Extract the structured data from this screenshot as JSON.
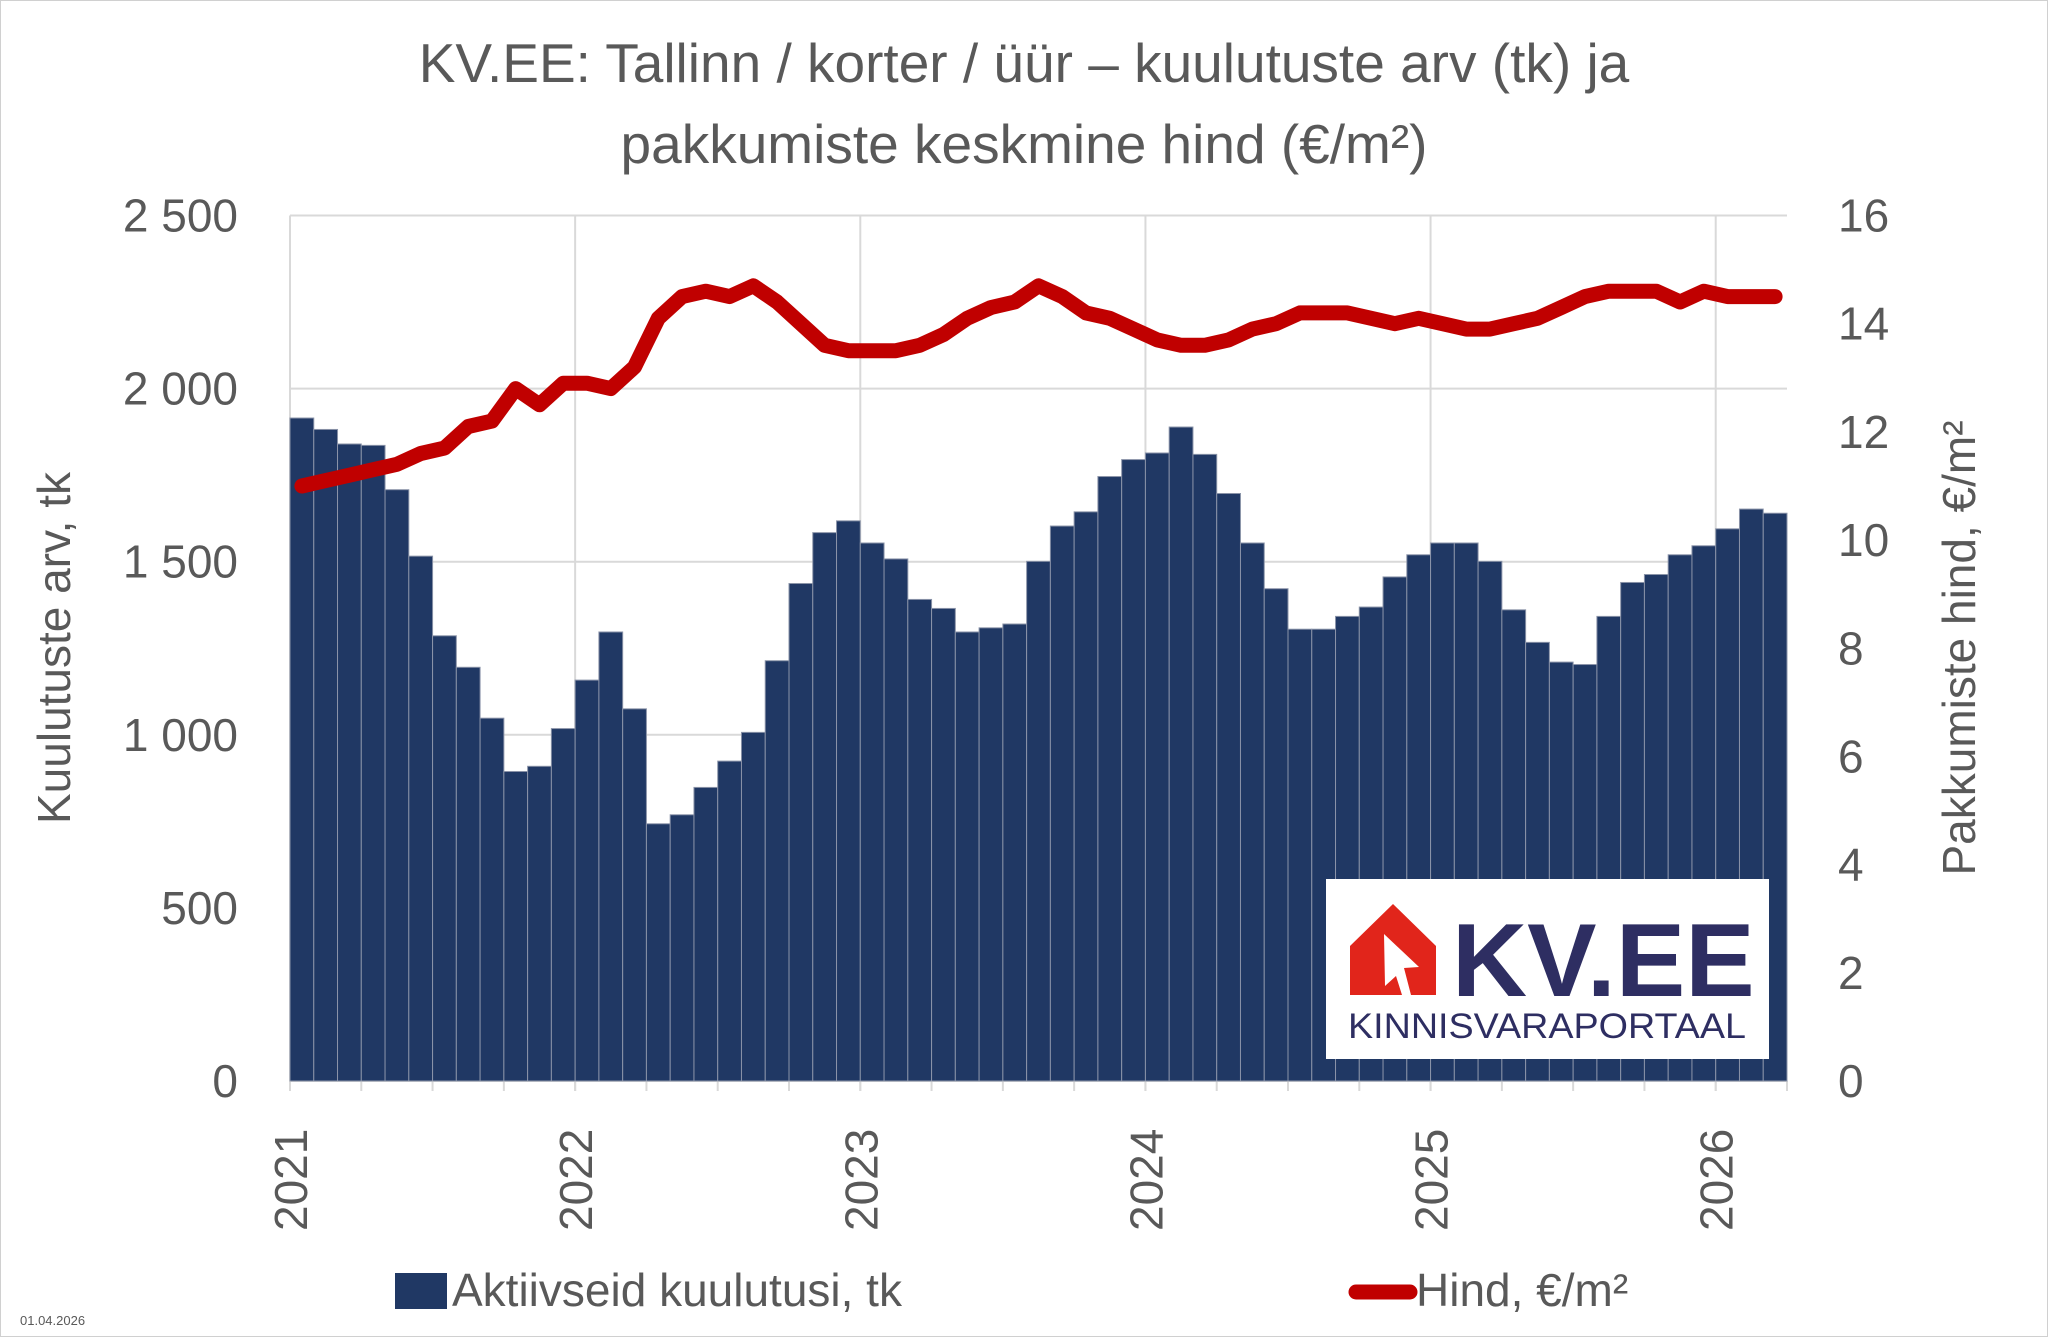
{
  "chart_data": {
    "type": "bar+line",
    "title_lines": [
      "KV.EE: Tallinn / korter / üür – kuulutuste arv (tk) ja",
      "pakkumiste keskmine hind (€/m²)"
    ],
    "ylabel_left": "Kuulutuste arv, tk",
    "ylabel_right": "Pakkumiste hind, €/m²",
    "ylim_left": [
      0,
      2500
    ],
    "ylim_right": [
      0,
      16
    ],
    "left_ticks": [
      "0",
      "500",
      "1 000",
      "1 500",
      "2 000",
      "2 500"
    ],
    "left_tick_values": [
      0,
      500,
      1000,
      1500,
      2000,
      2500
    ],
    "right_ticks": [
      "0",
      "2",
      "4",
      "6",
      "8",
      "10",
      "12",
      "14",
      "16"
    ],
    "right_tick_values": [
      0,
      2,
      4,
      6,
      8,
      10,
      12,
      14,
      16
    ],
    "x_tick_labels": [
      "2021",
      "2022",
      "2023",
      "2024",
      "2025",
      "2026"
    ],
    "x_start": "2021-01",
    "x_end": "2026-03",
    "grid": true,
    "legend_position": "bottom",
    "colors": {
      "bars": "#203864",
      "line": "#c00000",
      "grid": "#d9d9d9",
      "text": "#595959"
    },
    "series": [
      {
        "name": "Aktiivseid kuulutusi, tk",
        "type": "bar",
        "axis": "left",
        "values": [
          1915,
          1882,
          1840,
          1836,
          1708,
          1516,
          1286,
          1195,
          1048,
          894,
          909,
          1018,
          1158,
          1297,
          1075,
          743,
          769,
          848,
          924,
          1007,
          1214,
          1437,
          1584,
          1618,
          1554,
          1508,
          1391,
          1365,
          1297,
          1309,
          1320,
          1501,
          1603,
          1644,
          1746,
          1795,
          1814,
          1889,
          1810,
          1697,
          1554,
          1422,
          1305,
          1305,
          1342,
          1369,
          1456,
          1520,
          1554,
          1554,
          1501,
          1361,
          1267,
          1210,
          1203,
          1342,
          1440,
          1463,
          1520,
          1546,
          1595,
          1652,
          1640
        ]
      },
      {
        "name": "Hind, €/m²",
        "type": "line",
        "axis": "right",
        "values": [
          11.0,
          11.1,
          11.2,
          11.3,
          11.4,
          11.6,
          11.7,
          12.1,
          12.2,
          12.8,
          12.5,
          12.9,
          12.9,
          12.8,
          13.2,
          14.1,
          14.5,
          14.6,
          14.5,
          14.7,
          14.4,
          14.0,
          13.6,
          13.5,
          13.5,
          13.5,
          13.6,
          13.8,
          14.1,
          14.3,
          14.4,
          14.7,
          14.5,
          14.2,
          14.1,
          13.9,
          13.7,
          13.6,
          13.6,
          13.7,
          13.9,
          14.0,
          14.2,
          14.2,
          14.2,
          14.1,
          14.0,
          14.1,
          14.0,
          13.9,
          13.9,
          14.0,
          14.1,
          14.3,
          14.5,
          14.6,
          14.6,
          14.6,
          14.4,
          14.6,
          14.5,
          14.5,
          14.5
        ]
      }
    ]
  },
  "footer": {
    "date": "01.04.2026"
  },
  "logo": {
    "text": "KV.EE",
    "subtitle": "KINNISVARAPORTAAL"
  }
}
